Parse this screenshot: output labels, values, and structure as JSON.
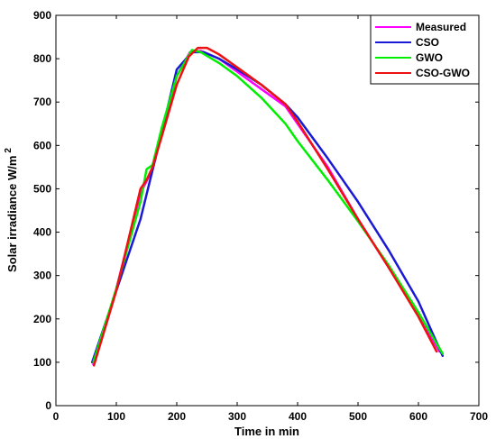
{
  "chart_data": {
    "type": "line",
    "xlabel": "Time in min",
    "ylabel": "Solar irradiance W/m",
    "ylabel_superscript": "2",
    "xlim": [
      0,
      700
    ],
    "ylim": [
      0,
      900
    ],
    "x_ticks": [
      0,
      100,
      200,
      300,
      400,
      500,
      600,
      700
    ],
    "y_ticks": [
      0,
      100,
      200,
      300,
      400,
      500,
      600,
      700,
      800,
      900
    ],
    "grid": false,
    "legend_position": "top-right",
    "series": [
      {
        "name": "Measured",
        "color": "#ff00ff",
        "points": [
          [
            62,
            95
          ],
          [
            100,
            270
          ],
          [
            140,
            490
          ],
          [
            160,
            545
          ],
          [
            200,
            760
          ],
          [
            222,
            815
          ],
          [
            240,
            818
          ],
          [
            270,
            800
          ],
          [
            300,
            770
          ],
          [
            340,
            730
          ],
          [
            380,
            690
          ],
          [
            400,
            650
          ],
          [
            450,
            550
          ],
          [
            500,
            430
          ],
          [
            550,
            320
          ],
          [
            600,
            210
          ],
          [
            635,
            125
          ]
        ]
      },
      {
        "name": "CSO",
        "color": "#1a1ad6",
        "points": [
          [
            60,
            100
          ],
          [
            100,
            265
          ],
          [
            140,
            430
          ],
          [
            170,
            600
          ],
          [
            200,
            775
          ],
          [
            225,
            815
          ],
          [
            245,
            815
          ],
          [
            270,
            800
          ],
          [
            300,
            775
          ],
          [
            340,
            740
          ],
          [
            380,
            695
          ],
          [
            400,
            665
          ],
          [
            450,
            570
          ],
          [
            500,
            470
          ],
          [
            550,
            360
          ],
          [
            600,
            240
          ],
          [
            640,
            115
          ]
        ]
      },
      {
        "name": "GWO",
        "color": "#00ee00",
        "points": [
          [
            62,
            100
          ],
          [
            100,
            270
          ],
          [
            140,
            470
          ],
          [
            150,
            545
          ],
          [
            160,
            555
          ],
          [
            175,
            640
          ],
          [
            200,
            760
          ],
          [
            225,
            820
          ],
          [
            240,
            815
          ],
          [
            270,
            790
          ],
          [
            300,
            760
          ],
          [
            340,
            710
          ],
          [
            380,
            650
          ],
          [
            400,
            610
          ],
          [
            450,
            520
          ],
          [
            500,
            425
          ],
          [
            550,
            325
          ],
          [
            600,
            215
          ],
          [
            640,
            120
          ]
        ]
      },
      {
        "name": "CSO-GWO",
        "color": "#ee1111",
        "points": [
          [
            63,
            93
          ],
          [
            100,
            265
          ],
          [
            140,
            500
          ],
          [
            150,
            520
          ],
          [
            160,
            550
          ],
          [
            175,
            620
          ],
          [
            200,
            740
          ],
          [
            220,
            805
          ],
          [
            235,
            825
          ],
          [
            250,
            825
          ],
          [
            270,
            810
          ],
          [
            300,
            780
          ],
          [
            340,
            740
          ],
          [
            380,
            695
          ],
          [
            400,
            655
          ],
          [
            450,
            545
          ],
          [
            500,
            430
          ],
          [
            550,
            320
          ],
          [
            600,
            205
          ],
          [
            630,
            125
          ]
        ]
      }
    ]
  }
}
